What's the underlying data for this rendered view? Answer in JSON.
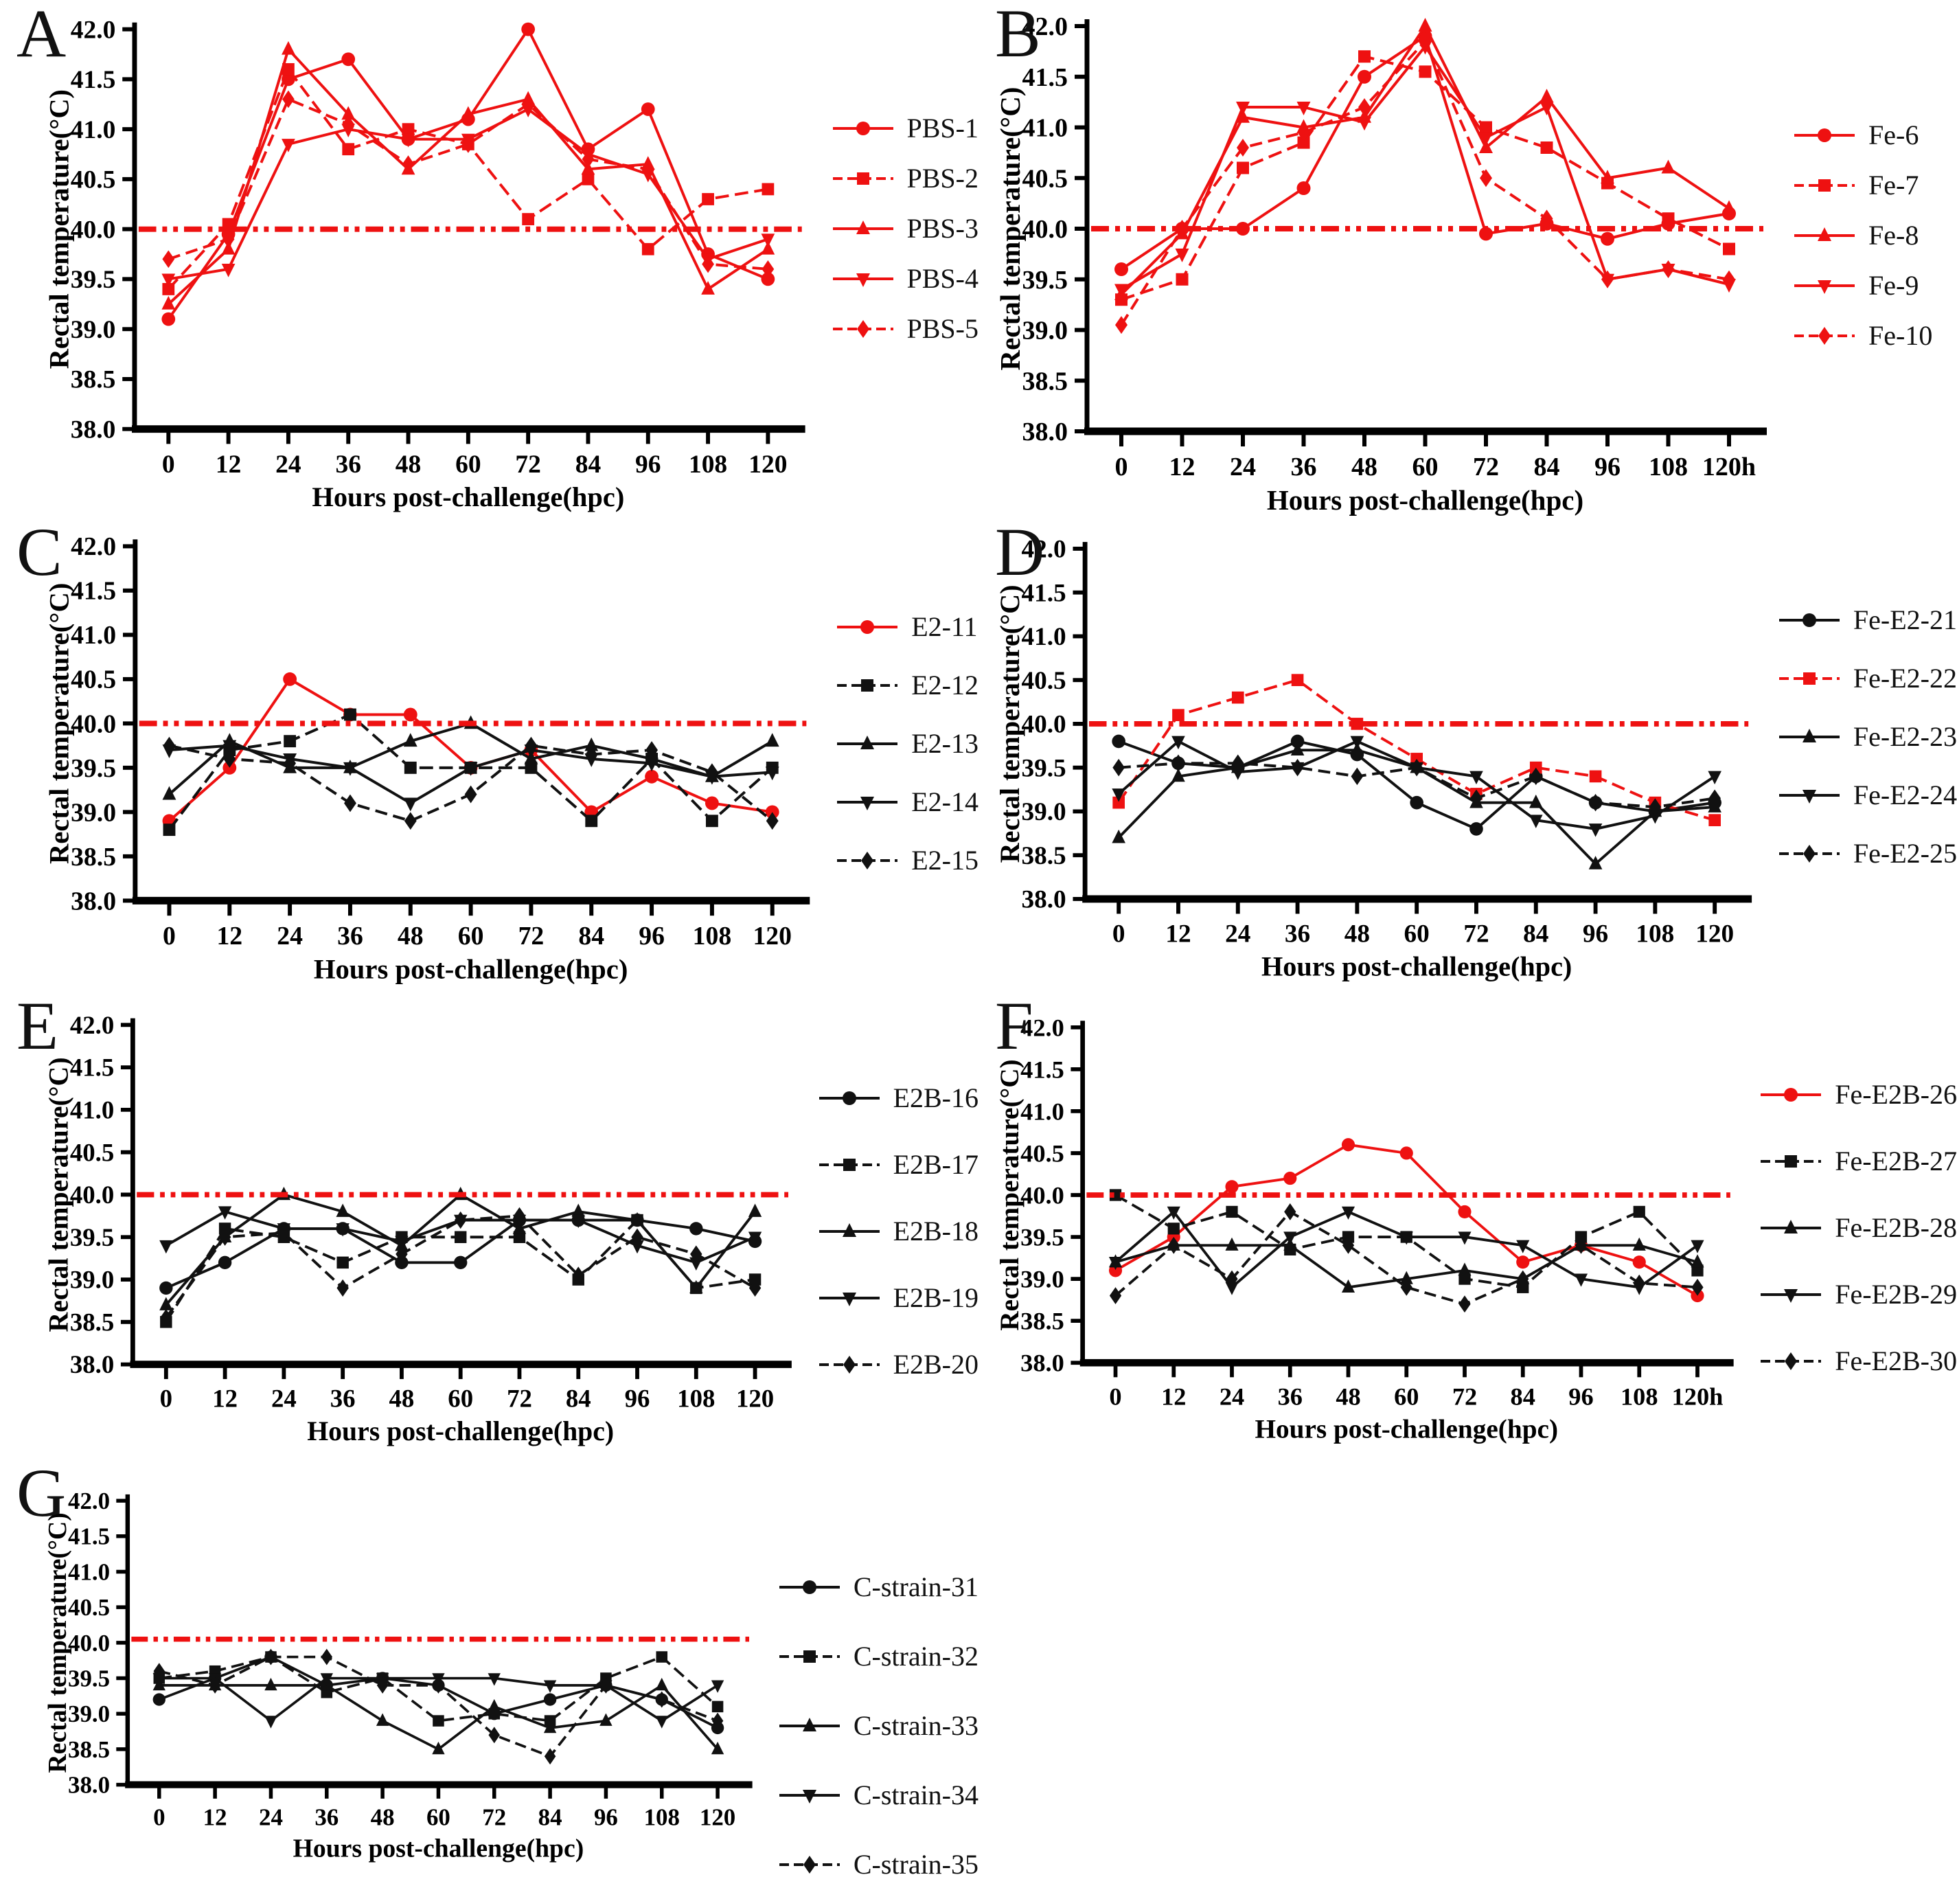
{
  "figure": {
    "background": "#ffffff",
    "accent_red": "#ee1111",
    "series_black": "#111111",
    "axes": {
      "ytick_labels": [
        "38.0",
        "38.5",
        "39.0",
        "39.5",
        "40.0",
        "40.5",
        "41.0",
        "41.5",
        "42.0"
      ]
    }
  },
  "chart_data": [
    {
      "panel": "A",
      "type": "line",
      "xlabel": "Hours post-challenge(hpc)",
      "ylabel": "Rectal temperature(°C)",
      "ylim": [
        38.0,
        42.0
      ],
      "ytick_step": 0.5,
      "grid": false,
      "legend_position": "right",
      "x": [
        0,
        12,
        24,
        36,
        48,
        60,
        72,
        84,
        96,
        108,
        120
      ],
      "xtick_labels": [
        "0",
        "12",
        "24",
        "36",
        "48",
        "60",
        "72",
        "84",
        "96",
        "108",
        "120"
      ],
      "threshold": 40.0,
      "threshold_color": "#ee1111",
      "series": [
        {
          "name": "PBS-1",
          "marker": "circle",
          "color": "#ee1111",
          "values": [
            39.1,
            39.95,
            41.5,
            41.7,
            40.9,
            41.1,
            42.0,
            40.8,
            41.2,
            39.75,
            39.5
          ]
        },
        {
          "name": "PBS-2",
          "marker": "square",
          "color": "#ee1111",
          "values": [
            39.4,
            40.05,
            41.6,
            40.8,
            41.0,
            40.85,
            40.1,
            40.5,
            39.8,
            40.3,
            40.4
          ]
        },
        {
          "name": "PBS-3",
          "marker": "triangle-up",
          "color": "#ee1111",
          "values": [
            39.25,
            39.8,
            41.8,
            41.15,
            40.6,
            41.15,
            41.3,
            40.6,
            40.65,
            39.4,
            39.8
          ]
        },
        {
          "name": "PBS-4",
          "marker": "triangle-down",
          "color": "#ee1111",
          "values": [
            39.5,
            39.6,
            40.85,
            41.0,
            40.9,
            40.9,
            41.2,
            40.75,
            40.55,
            39.7,
            39.9
          ]
        },
        {
          "name": "PBS-5",
          "marker": "diamond",
          "color": "#ee1111",
          "values": [
            39.7,
            39.9,
            41.3,
            41.05,
            40.65,
            40.85,
            41.25,
            40.7,
            40.6,
            39.65,
            39.6
          ]
        }
      ]
    },
    {
      "panel": "B",
      "type": "line",
      "xlabel": "Hours post-challenge(hpc)",
      "ylabel": "Rectal temperature(°C)",
      "ylim": [
        38.0,
        42.0
      ],
      "ytick_step": 0.5,
      "grid": false,
      "legend_position": "right",
      "x": [
        0,
        12,
        24,
        36,
        48,
        60,
        72,
        84,
        96,
        108,
        120
      ],
      "xtick_labels": [
        "0",
        "12",
        "24",
        "36",
        "48",
        "60",
        "72",
        "84",
        "96",
        "108",
        "120h"
      ],
      "threshold": 40.0,
      "threshold_color": "#ee1111",
      "series": [
        {
          "name": "Fe-6",
          "marker": "circle",
          "color": "#ee1111",
          "values": [
            39.6,
            40.0,
            40.0,
            40.4,
            41.5,
            41.9,
            39.95,
            40.05,
            39.9,
            40.05,
            40.15
          ]
        },
        {
          "name": "Fe-7",
          "marker": "square",
          "color": "#ee1111",
          "values": [
            39.3,
            39.5,
            40.6,
            40.85,
            41.7,
            41.55,
            41.0,
            40.8,
            40.45,
            40.1,
            39.8
          ]
        },
        {
          "name": "Fe-8",
          "marker": "triangle-up",
          "color": "#ee1111",
          "values": [
            39.35,
            39.95,
            41.1,
            41.0,
            41.1,
            42.0,
            40.8,
            41.3,
            40.5,
            40.6,
            40.2
          ]
        },
        {
          "name": "Fe-9",
          "marker": "triangle-down",
          "color": "#ee1111",
          "values": [
            39.4,
            39.75,
            41.2,
            41.2,
            41.05,
            41.8,
            40.9,
            41.2,
            39.5,
            39.6,
            39.45
          ]
        },
        {
          "name": "Fe-10",
          "marker": "diamond",
          "color": "#ee1111",
          "values": [
            39.05,
            40.0,
            40.8,
            40.95,
            41.2,
            41.85,
            40.5,
            40.1,
            39.5,
            39.6,
            39.5
          ]
        }
      ]
    },
    {
      "panel": "C",
      "type": "line",
      "xlabel": "Hours post-challenge(hpc)",
      "ylabel": "Rectal temperature(°C)",
      "ylim": [
        38.0,
        42.0
      ],
      "ytick_step": 0.5,
      "grid": false,
      "legend_position": "right",
      "x": [
        0,
        12,
        24,
        36,
        48,
        60,
        72,
        84,
        96,
        108,
        120
      ],
      "xtick_labels": [
        "0",
        "12",
        "24",
        "36",
        "48",
        "60",
        "72",
        "84",
        "96",
        "108",
        "120"
      ],
      "threshold": 40.0,
      "threshold_color": "#ee1111",
      "series": [
        {
          "name": "E2-11",
          "marker": "circle",
          "color": "#ee1111",
          "values": [
            38.9,
            39.5,
            40.5,
            40.1,
            40.1,
            39.5,
            39.7,
            39.0,
            39.4,
            39.1,
            39.0
          ]
        },
        {
          "name": "E2-12",
          "marker": "square",
          "color": "#111111",
          "values": [
            38.8,
            39.7,
            39.8,
            40.1,
            39.5,
            39.5,
            39.5,
            38.9,
            39.6,
            38.9,
            39.5
          ]
        },
        {
          "name": "E2-13",
          "marker": "triangle-up",
          "color": "#111111",
          "values": [
            39.2,
            39.8,
            39.5,
            39.5,
            39.8,
            40.0,
            39.6,
            39.75,
            39.6,
            39.4,
            39.8
          ]
        },
        {
          "name": "E2-14",
          "marker": "triangle-down",
          "color": "#111111",
          "values": [
            39.7,
            39.75,
            39.6,
            39.5,
            39.1,
            39.5,
            39.7,
            39.6,
            39.55,
            39.4,
            39.45
          ]
        },
        {
          "name": "E2-15",
          "marker": "diamond",
          "color": "#111111",
          "values": [
            39.75,
            39.6,
            39.55,
            39.1,
            38.9,
            39.2,
            39.75,
            39.65,
            39.7,
            39.45,
            38.9
          ]
        }
      ]
    },
    {
      "panel": "D",
      "type": "line",
      "xlabel": "Hours post-challenge(hpc)",
      "ylabel": "Rectal temperature(°C)",
      "ylim": [
        38.0,
        42.0
      ],
      "ytick_step": 0.5,
      "grid": false,
      "legend_position": "right",
      "x": [
        0,
        12,
        24,
        36,
        48,
        60,
        72,
        84,
        96,
        108,
        120
      ],
      "xtick_labels": [
        "0",
        "12",
        "24",
        "36",
        "48",
        "60",
        "72",
        "84",
        "96",
        "108",
        "120"
      ],
      "threshold": 40.0,
      "threshold_color": "#ee1111",
      "series": [
        {
          "name": "Fe-E2-21",
          "marker": "circle",
          "color": "#111111",
          "values": [
            39.8,
            39.55,
            39.5,
            39.8,
            39.65,
            39.1,
            38.8,
            39.4,
            39.1,
            39.0,
            39.1
          ]
        },
        {
          "name": "Fe-E2-22",
          "marker": "square",
          "color": "#ee1111",
          "values": [
            39.1,
            40.1,
            40.3,
            40.5,
            40.0,
            39.6,
            39.2,
            39.5,
            39.4,
            39.1,
            38.9
          ]
        },
        {
          "name": "Fe-E2-23",
          "marker": "triangle-up",
          "color": "#111111",
          "values": [
            38.7,
            39.4,
            39.5,
            39.7,
            39.7,
            39.5,
            39.1,
            39.1,
            38.4,
            39.0,
            39.05
          ]
        },
        {
          "name": "Fe-E2-24",
          "marker": "triangle-down",
          "color": "#111111",
          "values": [
            39.2,
            39.8,
            39.45,
            39.5,
            39.8,
            39.5,
            39.4,
            38.9,
            38.8,
            38.95,
            39.4
          ]
        },
        {
          "name": "Fe-E2-25",
          "marker": "diamond",
          "color": "#111111",
          "values": [
            39.5,
            39.55,
            39.55,
            39.5,
            39.4,
            39.5,
            39.15,
            39.4,
            39.1,
            39.05,
            39.15
          ]
        }
      ]
    },
    {
      "panel": "E",
      "type": "line",
      "xlabel": "Hours post-challenge(hpc)",
      "ylabel": "Rectal temperature(°C)",
      "ylim": [
        38.0,
        42.0
      ],
      "ytick_step": 0.5,
      "grid": false,
      "legend_position": "right",
      "x": [
        0,
        12,
        24,
        36,
        48,
        60,
        72,
        84,
        96,
        108,
        120
      ],
      "xtick_labels": [
        "0",
        "12",
        "24",
        "36",
        "48",
        "60",
        "72",
        "84",
        "96",
        "108",
        "120"
      ],
      "threshold": 40.0,
      "threshold_color": "#ee1111",
      "series": [
        {
          "name": "E2B-16",
          "marker": "circle",
          "color": "#111111",
          "values": [
            38.9,
            39.2,
            39.6,
            39.6,
            39.2,
            39.2,
            39.7,
            39.7,
            39.7,
            39.6,
            39.45
          ]
        },
        {
          "name": "E2B-17",
          "marker": "square",
          "color": "#111111",
          "values": [
            38.5,
            39.6,
            39.5,
            39.2,
            39.5,
            39.5,
            39.5,
            39.0,
            39.7,
            38.9,
            39.0
          ]
        },
        {
          "name": "E2B-18",
          "marker": "triangle-up",
          "color": "#111111",
          "values": [
            38.7,
            39.5,
            40.0,
            39.8,
            39.4,
            40.0,
            39.6,
            39.8,
            39.7,
            38.9,
            39.8
          ]
        },
        {
          "name": "E2B-19",
          "marker": "triangle-down",
          "color": "#111111",
          "values": [
            39.4,
            39.8,
            39.6,
            39.6,
            39.45,
            39.7,
            39.7,
            39.7,
            39.4,
            39.2,
            39.5
          ]
        },
        {
          "name": "E2B-20",
          "marker": "diamond",
          "color": "#111111",
          "values": [
            38.55,
            39.5,
            39.55,
            38.9,
            39.3,
            39.7,
            39.75,
            39.05,
            39.5,
            39.3,
            38.9
          ]
        }
      ]
    },
    {
      "panel": "F",
      "type": "line",
      "xlabel": "Hours post-challenge(hpc)",
      "ylabel": "Rectal temperature(°C)",
      "ylim": [
        38.0,
        42.0
      ],
      "ytick_step": 0.5,
      "grid": false,
      "legend_position": "right",
      "x": [
        0,
        12,
        24,
        36,
        48,
        60,
        72,
        84,
        96,
        108,
        120
      ],
      "xtick_labels": [
        "0",
        "12",
        "24",
        "36",
        "48",
        "60",
        "72",
        "84",
        "96",
        "108",
        "120h"
      ],
      "threshold": 40.0,
      "threshold_color": "#ee1111",
      "series": [
        {
          "name": "Fe-E2B-26",
          "marker": "circle",
          "color": "#ee1111",
          "values": [
            39.1,
            39.5,
            40.1,
            40.2,
            40.6,
            40.5,
            39.8,
            39.2,
            39.4,
            39.2,
            38.8
          ]
        },
        {
          "name": "Fe-E2B-27",
          "marker": "square",
          "color": "#111111",
          "values": [
            40.0,
            39.6,
            39.8,
            39.35,
            39.5,
            39.5,
            39.0,
            38.9,
            39.5,
            39.8,
            39.1
          ]
        },
        {
          "name": "Fe-E2B-28",
          "marker": "triangle-up",
          "color": "#111111",
          "values": [
            39.2,
            39.4,
            39.4,
            39.4,
            38.9,
            39.0,
            39.1,
            39.0,
            39.4,
            39.4,
            39.2
          ]
        },
        {
          "name": "Fe-E2B-29",
          "marker": "triangle-down",
          "color": "#111111",
          "values": [
            39.2,
            39.8,
            38.9,
            39.5,
            39.8,
            39.5,
            39.5,
            39.4,
            39.0,
            38.9,
            39.4
          ]
        },
        {
          "name": "Fe-E2B-30",
          "marker": "diamond",
          "color": "#111111",
          "values": [
            38.8,
            39.4,
            39.0,
            39.8,
            39.4,
            38.9,
            38.7,
            39.0,
            39.4,
            38.95,
            38.9
          ]
        }
      ]
    },
    {
      "panel": "G",
      "type": "line",
      "xlabel": "Hours post-challenge(hpc)",
      "ylabel": "Rectal temperature(°C)",
      "ylim": [
        38.0,
        42.0
      ],
      "ytick_step": 0.5,
      "grid": false,
      "legend_position": "right",
      "x": [
        0,
        12,
        24,
        36,
        48,
        60,
        72,
        84,
        96,
        108,
        120
      ],
      "xtick_labels": [
        "0",
        "12",
        "24",
        "36",
        "48",
        "60",
        "72",
        "84",
        "96",
        "108",
        "120"
      ],
      "threshold": 40.05,
      "threshold_color": "#ee1111",
      "series": [
        {
          "name": "C-strain-31",
          "marker": "circle",
          "color": "#111111",
          "values": [
            39.2,
            39.5,
            39.8,
            39.4,
            39.5,
            39.4,
            39.0,
            39.2,
            39.4,
            39.2,
            38.8
          ]
        },
        {
          "name": "C-strain-32",
          "marker": "square",
          "color": "#111111",
          "values": [
            39.5,
            39.6,
            39.8,
            39.3,
            39.5,
            38.9,
            39.0,
            38.9,
            39.5,
            39.8,
            39.1
          ]
        },
        {
          "name": "C-strain-33",
          "marker": "triangle-up",
          "color": "#111111",
          "values": [
            39.4,
            39.4,
            39.4,
            39.4,
            38.9,
            38.5,
            39.1,
            38.8,
            38.9,
            39.4,
            38.5
          ]
        },
        {
          "name": "C-strain-34",
          "marker": "triangle-down",
          "color": "#111111",
          "values": [
            39.5,
            39.5,
            38.9,
            39.5,
            39.5,
            39.5,
            39.5,
            39.4,
            39.4,
            38.9,
            39.4
          ]
        },
        {
          "name": "C-strain-35",
          "marker": "diamond",
          "color": "#111111",
          "values": [
            39.6,
            39.4,
            39.8,
            39.8,
            39.4,
            39.4,
            38.7,
            38.4,
            39.4,
            39.2,
            38.9
          ]
        }
      ]
    }
  ]
}
